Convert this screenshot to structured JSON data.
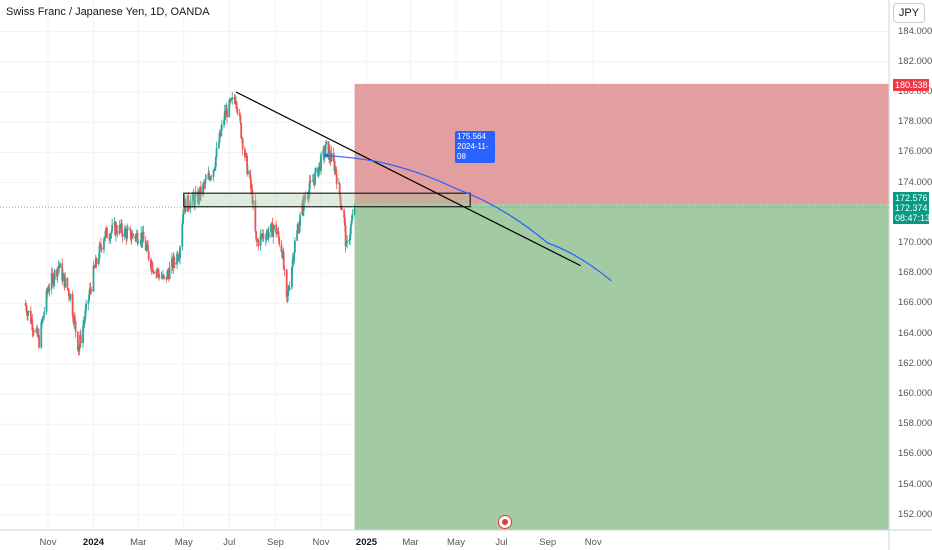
{
  "header": {
    "symbol_title": "Swiss Franc / Japanese Yen, 1D, OANDA"
  },
  "currency_button": {
    "label": "JPY"
  },
  "price_axis": {
    "labels": [
      "184.000",
      "182.000",
      "180.000",
      "178.000",
      "176.000",
      "174.000",
      "170.000",
      "168.000",
      "166.000",
      "164.000",
      "162.000",
      "160.000",
      "158.000",
      "156.000",
      "154.000",
      "152.000"
    ]
  },
  "time_axis": {
    "labels": [
      {
        "text": "Nov",
        "bold": false
      },
      {
        "text": "2024",
        "bold": true
      },
      {
        "text": "Mar",
        "bold": false
      },
      {
        "text": "May",
        "bold": false
      },
      {
        "text": "Jul",
        "bold": false
      },
      {
        "text": "Sep",
        "bold": false
      },
      {
        "text": "Nov",
        "bold": false
      },
      {
        "text": "2025",
        "bold": true
      },
      {
        "text": "Mar",
        "bold": false
      },
      {
        "text": "May",
        "bold": false
      },
      {
        "text": "Jul",
        "bold": false
      },
      {
        "text": "Sep",
        "bold": false
      },
      {
        "text": "Nov",
        "bold": false
      }
    ]
  },
  "price_tags": {
    "stop_level": "180.538",
    "entry_level": "172.576",
    "last_price": "172.374",
    "countdown": "08:47:13"
  },
  "tooltip": {
    "price": "175.564",
    "date": "2024-11-08"
  },
  "colors": {
    "up": "#26a69a",
    "down": "#ef5350",
    "stop_zone": "#e29a9a",
    "target_zone": "#9ec89e",
    "trendline": "#000000",
    "projection": "#2962ff",
    "tag_red": "#f23645",
    "tag_green": "#089981"
  },
  "chart_data": {
    "type": "candlestick",
    "title": "Swiss Franc / Japanese Yen, 1D, OANDA",
    "x_range": [
      "2023-10",
      "2025-11"
    ],
    "ylim": [
      151,
      186
    ],
    "grid": true,
    "anchors": [
      [
        "2023-10-01",
        166.0
      ],
      [
        "2023-10-20",
        163.5
      ],
      [
        "2023-11-01",
        167.0
      ],
      [
        "2023-11-15",
        168.5
      ],
      [
        "2023-12-01",
        166.5
      ],
      [
        "2023-12-12",
        163.0
      ],
      [
        "2024-01-01",
        168.0
      ],
      [
        "2024-01-15",
        170.5
      ],
      [
        "2024-02-01",
        171.0
      ],
      [
        "2024-02-20",
        170.5
      ],
      [
        "2024-03-05",
        170.5
      ],
      [
        "2024-03-20",
        168.5
      ],
      [
        "2024-04-05",
        167.5
      ],
      [
        "2024-04-25",
        169.5
      ],
      [
        "2024-05-01",
        172.5
      ],
      [
        "2024-05-20",
        173.0
      ],
      [
        "2024-06-10",
        175.0
      ],
      [
        "2024-06-25",
        178.5
      ],
      [
        "2024-07-10",
        179.7
      ],
      [
        "2024-07-18",
        177.0
      ],
      [
        "2024-08-01",
        173.0
      ],
      [
        "2024-08-06",
        170.0
      ],
      [
        "2024-08-15",
        170.5
      ],
      [
        "2024-09-01",
        171.0
      ],
      [
        "2024-09-10",
        169.5
      ],
      [
        "2024-09-16",
        166.0
      ],
      [
        "2024-09-27",
        170.0
      ],
      [
        "2024-10-10",
        173.0
      ],
      [
        "2024-10-25",
        174.5
      ],
      [
        "2024-11-08",
        176.3
      ],
      [
        "2024-11-20",
        175.0
      ],
      [
        "2024-12-02",
        171.5
      ],
      [
        "2024-12-05",
        169.5
      ],
      [
        "2024-12-16",
        172.4
      ]
    ],
    "last_price": 172.374,
    "zone": {
      "low": 172.4,
      "high": 173.3,
      "start": "2024-05-01",
      "end": "2025-05-20"
    },
    "trendline": [
      [
        "2024-07-10",
        180.0
      ],
      [
        "2025-10-15",
        168.5
      ]
    ],
    "projection": [
      [
        "2024-11-08",
        175.8
      ],
      [
        "2025-01-15",
        175.4
      ],
      [
        "2025-05-01",
        173.6
      ],
      [
        "2025-09-01",
        170.0
      ],
      [
        "2025-11-25",
        167.5
      ]
    ],
    "position": {
      "entry": 172.576,
      "stop": 180.538,
      "target": 151.0,
      "start": "2024-12-16"
    }
  }
}
